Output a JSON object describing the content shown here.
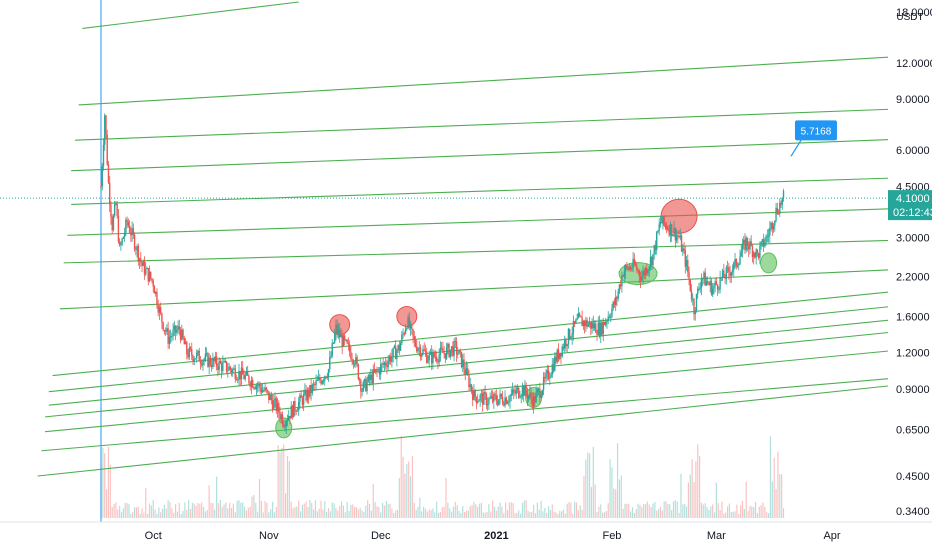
{
  "chart_data": {
    "type": "candlestick",
    "symbol_quote_currency": "USDT",
    "y_scale": "log",
    "ylim": [
      0.33,
      19.5
    ],
    "y_ticks": [
      {
        "value": 18.0,
        "label": "18.0000"
      },
      {
        "value": 12.0,
        "label": "12.0000"
      },
      {
        "value": 9.0,
        "label": "9.0000"
      },
      {
        "value": 6.0,
        "label": "6.0000"
      },
      {
        "value": 4.5,
        "label": "4.5000"
      },
      {
        "value": 3.0,
        "label": "3.0000"
      },
      {
        "value": 2.2,
        "label": "2.2000"
      },
      {
        "value": 1.6,
        "label": "1.6000"
      },
      {
        "value": 1.2,
        "label": "1.2000"
      },
      {
        "value": 0.9,
        "label": "0.9000"
      },
      {
        "value": 0.65,
        "label": "0.6500"
      },
      {
        "value": 0.45,
        "label": "0.4500"
      },
      {
        "value": 0.34,
        "label": "0.3400"
      }
    ],
    "x_ticks": [
      "Oct",
      "Nov",
      "Dec",
      "2021",
      "Feb",
      "Mar",
      "Apr"
    ],
    "current_price": {
      "value": 4.1,
      "label": "4.1000",
      "countdown": "02:12:43"
    },
    "target_callout": {
      "value": 5.7168,
      "label": "5.7168"
    },
    "price_series": [
      {
        "date": "2020-09-17",
        "value": 4.5
      },
      {
        "date": "2020-09-18",
        "value": 8.0
      },
      {
        "date": "2020-09-19",
        "value": 4.6
      },
      {
        "date": "2020-09-20",
        "value": 3.3
      },
      {
        "date": "2020-09-21",
        "value": 3.9
      },
      {
        "date": "2020-09-22",
        "value": 2.7
      },
      {
        "date": "2020-09-24",
        "value": 3.4
      },
      {
        "date": "2020-09-26",
        "value": 2.9
      },
      {
        "date": "2020-09-28",
        "value": 2.4
      },
      {
        "date": "2020-10-01",
        "value": 2.1
      },
      {
        "date": "2020-10-03",
        "value": 1.6
      },
      {
        "date": "2020-10-05",
        "value": 1.35
      },
      {
        "date": "2020-10-08",
        "value": 1.45
      },
      {
        "date": "2020-10-10",
        "value": 1.2
      },
      {
        "date": "2020-10-14",
        "value": 1.15
      },
      {
        "date": "2020-10-18",
        "value": 1.1
      },
      {
        "date": "2020-10-22",
        "value": 1.05
      },
      {
        "date": "2020-10-25",
        "value": 1.0
      },
      {
        "date": "2020-10-28",
        "value": 0.95
      },
      {
        "date": "2020-10-31",
        "value": 0.88
      },
      {
        "date": "2020-11-03",
        "value": 0.78
      },
      {
        "date": "2020-11-05",
        "value": 0.7
      },
      {
        "date": "2020-11-08",
        "value": 0.78
      },
      {
        "date": "2020-11-12",
        "value": 0.88
      },
      {
        "date": "2020-11-17",
        "value": 1.05
      },
      {
        "date": "2020-11-19",
        "value": 1.45
      },
      {
        "date": "2020-11-21",
        "value": 1.3
      },
      {
        "date": "2020-11-24",
        "value": 1.15
      },
      {
        "date": "2020-11-26",
        "value": 0.9
      },
      {
        "date": "2020-11-29",
        "value": 1.0
      },
      {
        "date": "2020-12-02",
        "value": 1.1
      },
      {
        "date": "2020-12-06",
        "value": 1.25
      },
      {
        "date": "2020-12-08",
        "value": 1.55
      },
      {
        "date": "2020-12-10",
        "value": 1.3
      },
      {
        "date": "2020-12-14",
        "value": 1.15
      },
      {
        "date": "2020-12-18",
        "value": 1.2
      },
      {
        "date": "2020-12-21",
        "value": 1.25
      },
      {
        "date": "2020-12-23",
        "value": 1.1
      },
      {
        "date": "2020-12-26",
        "value": 0.85
      },
      {
        "date": "2020-12-30",
        "value": 0.82
      },
      {
        "date": "2021-01-04",
        "value": 0.84
      },
      {
        "date": "2021-01-08",
        "value": 0.9
      },
      {
        "date": "2021-01-11",
        "value": 0.82
      },
      {
        "date": "2021-01-14",
        "value": 0.95
      },
      {
        "date": "2021-01-17",
        "value": 1.15
      },
      {
        "date": "2021-01-20",
        "value": 1.35
      },
      {
        "date": "2021-01-23",
        "value": 1.55
      },
      {
        "date": "2021-01-26",
        "value": 1.5
      },
      {
        "date": "2021-01-29",
        "value": 1.45
      },
      {
        "date": "2021-02-02",
        "value": 1.8
      },
      {
        "date": "2021-02-04",
        "value": 2.3
      },
      {
        "date": "2021-02-07",
        "value": 2.4
      },
      {
        "date": "2021-02-09",
        "value": 2.2
      },
      {
        "date": "2021-02-12",
        "value": 2.6
      },
      {
        "date": "2021-02-14",
        "value": 3.4
      },
      {
        "date": "2021-02-17",
        "value": 3.2
      },
      {
        "date": "2021-02-19",
        "value": 3.0
      },
      {
        "date": "2021-02-21",
        "value": 2.4
      },
      {
        "date": "2021-02-23",
        "value": 1.7
      },
      {
        "date": "2021-02-25",
        "value": 2.2
      },
      {
        "date": "2021-02-28",
        "value": 2.0
      },
      {
        "date": "2021-03-03",
        "value": 2.2
      },
      {
        "date": "2021-03-06",
        "value": 2.4
      },
      {
        "date": "2021-03-09",
        "value": 2.9
      },
      {
        "date": "2021-03-12",
        "value": 2.6
      },
      {
        "date": "2021-03-15",
        "value": 3.1
      },
      {
        "date": "2021-03-17",
        "value": 3.7
      },
      {
        "date": "2021-03-19",
        "value": 4.1
      }
    ],
    "channel_lines": [
      {
        "start": {
          "date": "2020-09-12",
          "value": 15.8
        },
        "end": {
          "date": "2020-11-09",
          "value": 19.5
        }
      },
      {
        "start": {
          "date": "2020-09-11",
          "value": 8.6
        },
        "end": {
          "date": "2021-04-26",
          "value": 12.8
        }
      },
      {
        "start": {
          "date": "2020-09-10",
          "value": 6.5
        },
        "end": {
          "date": "2021-04-26",
          "value": 8.4
        }
      },
      {
        "start": {
          "date": "2020-09-09",
          "value": 5.1
        },
        "end": {
          "date": "2021-04-26",
          "value": 6.6
        }
      },
      {
        "start": {
          "date": "2020-09-09",
          "value": 3.9
        },
        "end": {
          "date": "2021-04-26",
          "value": 4.85
        }
      },
      {
        "start": {
          "date": "2020-09-08",
          "value": 3.05
        },
        "end": {
          "date": "2021-04-26",
          "value": 3.8
        }
      },
      {
        "start": {
          "date": "2020-09-07",
          "value": 2.45
        },
        "end": {
          "date": "2021-04-26",
          "value": 2.95
        }
      },
      {
        "start": {
          "date": "2020-09-06",
          "value": 1.7
        },
        "end": {
          "date": "2021-04-26",
          "value": 2.35
        }
      },
      {
        "start": {
          "date": "2020-09-04",
          "value": 1.0
        },
        "end": {
          "date": "2021-04-26",
          "value": 2.0
        }
      },
      {
        "start": {
          "date": "2020-09-03",
          "value": 0.88
        },
        "end": {
          "date": "2021-04-26",
          "value": 1.78
        }
      },
      {
        "start": {
          "date": "2020-09-03",
          "value": 0.79
        },
        "end": {
          "date": "2021-04-26",
          "value": 1.6
        }
      },
      {
        "start": {
          "date": "2020-09-02",
          "value": 0.72
        },
        "end": {
          "date": "2021-04-26",
          "value": 1.45
        }
      },
      {
        "start": {
          "date": "2020-09-02",
          "value": 0.64
        },
        "end": {
          "date": "2021-04-26",
          "value": 1.25
        }
      },
      {
        "start": {
          "date": "2020-09-01",
          "value": 0.55
        },
        "end": {
          "date": "2021-04-26",
          "value": 1.0
        }
      },
      {
        "start": {
          "date": "2020-08-31",
          "value": 0.45
        },
        "end": {
          "date": "2021-04-26",
          "value": 0.95
        }
      }
    ],
    "highlights": [
      {
        "kind": "resistance",
        "color": "#e8534f",
        "date": "2020-11-20",
        "value": 1.5,
        "size": "small"
      },
      {
        "kind": "resistance",
        "color": "#e8534f",
        "date": "2020-12-08",
        "value": 1.6,
        "size": "small"
      },
      {
        "kind": "resistance",
        "color": "#e8534f",
        "date": "2021-02-19",
        "value": 3.55,
        "size": "large"
      },
      {
        "kind": "support",
        "color": "#5cbf5c",
        "date": "2020-11-05",
        "value": 0.66,
        "size": "small"
      },
      {
        "kind": "support",
        "color": "#5cbf5c",
        "date": "2021-01-11",
        "value": 0.84,
        "size": "small"
      },
      {
        "kind": "support",
        "color": "#5cbf5c",
        "date": "2021-02-08",
        "value": 2.25,
        "size": "wide"
      },
      {
        "kind": "support",
        "color": "#5cbf5c",
        "date": "2021-03-15",
        "value": 2.45,
        "size": "small"
      }
    ],
    "volume_peak_dates": [
      "2020-09-18",
      "2020-11-05",
      "2020-12-08",
      "2021-01-26",
      "2021-02-02",
      "2021-02-23",
      "2021-03-17"
    ],
    "grid": false,
    "legend": "none",
    "colors": {
      "up": "#26a69a",
      "down": "#ef5350",
      "channel": "#4caf50",
      "price_line": "#26a69a",
      "callout": "#2196f3",
      "vertical_marker": "#2196f3"
    }
  }
}
